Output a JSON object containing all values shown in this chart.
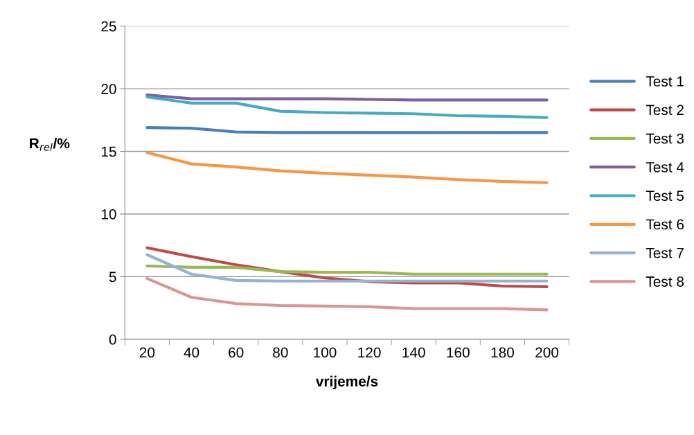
{
  "chart_data": {
    "type": "line",
    "xlabel": "vrijeme/s",
    "ylabel": "R$_{rel}$/%",
    "categories": [
      "20",
      "40",
      "60",
      "80",
      "100",
      "120",
      "140",
      "160",
      "180",
      "200"
    ],
    "series": [
      {
        "name": "Test 1",
        "color": "#4a7ebb",
        "values": [
          16.9,
          16.85,
          16.55,
          16.5,
          16.5,
          16.5,
          16.5,
          16.5,
          16.5,
          16.5
        ]
      },
      {
        "name": "Test 2",
        "color": "#be4b48",
        "values": [
          7.3,
          6.6,
          5.95,
          5.4,
          4.9,
          4.6,
          4.5,
          4.5,
          4.25,
          4.2
        ]
      },
      {
        "name": "Test 3",
        "color": "#98b954",
        "values": [
          5.85,
          5.75,
          5.75,
          5.4,
          5.35,
          5.35,
          5.2,
          5.2,
          5.2,
          5.2
        ]
      },
      {
        "name": "Test 4",
        "color": "#7d5fa0",
        "values": [
          19.5,
          19.2,
          19.2,
          19.2,
          19.2,
          19.15,
          19.1,
          19.1,
          19.1,
          19.1
        ]
      },
      {
        "name": "Test 5",
        "color": "#46aac5",
        "values": [
          19.35,
          18.85,
          18.85,
          18.2,
          18.1,
          18.05,
          18.0,
          17.85,
          17.8,
          17.7
        ]
      },
      {
        "name": "Test 6",
        "color": "#f79646",
        "values": [
          14.9,
          14.0,
          13.75,
          13.45,
          13.25,
          13.1,
          12.95,
          12.75,
          12.6,
          12.5
        ]
      },
      {
        "name": "Test 7",
        "color": "#95b3d7",
        "values": [
          6.75,
          5.2,
          4.7,
          4.65,
          4.65,
          4.65,
          4.65,
          4.65,
          4.65,
          4.65
        ]
      },
      {
        "name": "Test 8",
        "color": "#d99694",
        "values": [
          4.85,
          3.35,
          2.85,
          2.7,
          2.65,
          2.6,
          2.45,
          2.45,
          2.45,
          2.35
        ]
      }
    ],
    "ylim": [
      0,
      25
    ],
    "yticks": [
      0,
      5,
      10,
      15,
      20,
      25
    ],
    "grid": "y",
    "legend": "right",
    "marker": "none",
    "line_style": "solid"
  }
}
